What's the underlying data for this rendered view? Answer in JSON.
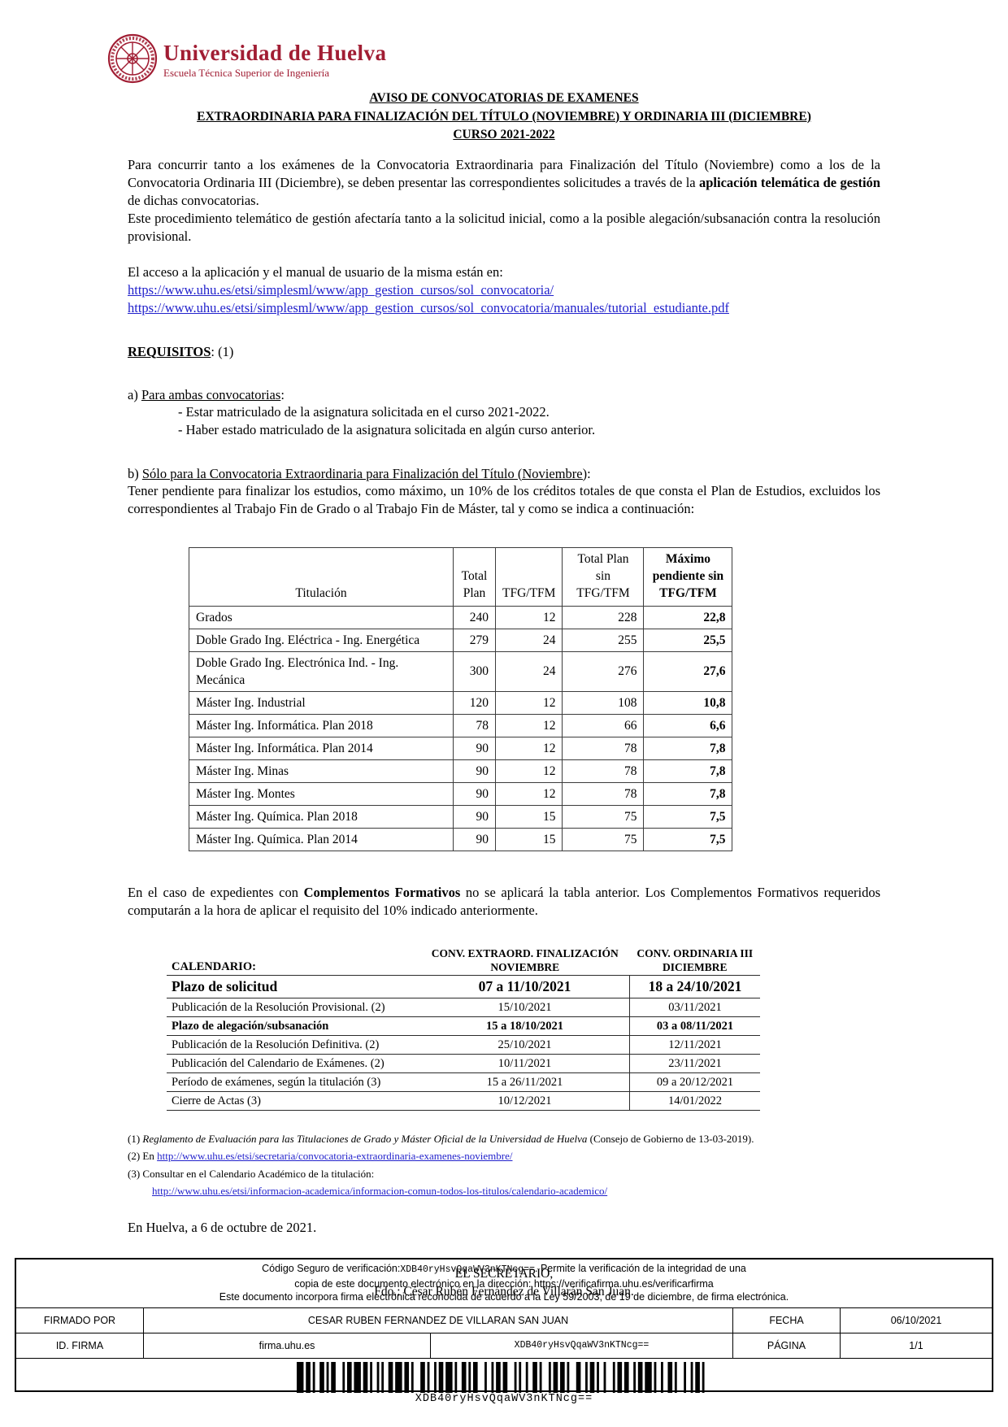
{
  "colors": {
    "brand_red": "#A11D33",
    "link_blue": "#2222CC"
  },
  "logo": {
    "university": "Universidad de Huelva",
    "school": "Escuela Técnica Superior de Ingeniería"
  },
  "title": {
    "line1": "AVISO DE CONVOCATORIAS DE EXAMENES",
    "line2": "EXTRAORDINARIA PARA FINALIZACIÓN DEL TÍTULO (NOVIEMBRE) Y ORDINARIA III (DICIEMBRE)",
    "line3": "CURSO 2021-2022"
  },
  "intro": {
    "p1_a": "Para concurrir tanto a los exámenes de la Convocatoria Extraordinaria para Finalización del Título (Noviembre) como a los de la Convocatoria Ordinaria III (Diciembre), se deben presentar las correspondientes solicitudes a través de la ",
    "p1_bold": "aplicación telemática de gestión",
    "p1_b": " de dichas convocatorias.",
    "p2": "Este procedimiento telemático de gestión afectaría tanto a la solicitud inicial, como a la posible alegación/subsanación contra la resolución provisional.",
    "access_line": "El acceso a la aplicación y el manual de usuario de la misma están en:",
    "link1": "https://www.uhu.es/etsi/simplesml/www/app_gestion_cursos/sol_convocatoria/",
    "link2": "https://www.uhu.es/etsi/simplesml/www/app_gestion_cursos/sol_convocatoria/manuales/tutorial_estudiante.pdf"
  },
  "requisitos": {
    "heading": "REQUISITOS",
    "heading_suffix": ": (1)",
    "a_label": "a) ",
    "a_underlined": "Para ambas convocatorias",
    "a_colon": ":",
    "a_item1": "- Estar matriculado de la asignatura solicitada en el curso 2021-2022.",
    "a_item2": "- Haber estado matriculado de la asignatura solicitada en algún curso anterior.",
    "b_label": "b) ",
    "b_underlined": "Sólo para la Convocatoria Extraordinaria para Finalización del Título (Noviembre)",
    "b_colon": ":",
    "b_paragraph": "Tener pendiente para finalizar los estudios, como máximo, un 10% de los créditos totales de que consta el Plan de Estudios, excluidos los correspondientes al Trabajo Fin de Grado o al Trabajo Fin de Máster, tal y como se indica a continuación:"
  },
  "credits_table": {
    "headers": {
      "titulacion": "Titulación",
      "total_plan": "Total Plan",
      "tfg_tfm": "TFG/TFM",
      "total_sin": "Total Plan sin TFG/TFM",
      "max_pendiente": "Máximo pendiente sin TFG/TFM"
    },
    "rows": [
      {
        "titulacion": "Grados",
        "total_plan": "240",
        "tfg_tfm": "12",
        "total_sin": "228",
        "max_pendiente": "22,8"
      },
      {
        "titulacion": "Doble Grado Ing. Eléctrica - Ing. Energética",
        "total_plan": "279",
        "tfg_tfm": "24",
        "total_sin": "255",
        "max_pendiente": "25,5"
      },
      {
        "titulacion": "Doble Grado Ing. Electrónica Ind. - Ing. Mecánica",
        "total_plan": "300",
        "tfg_tfm": "24",
        "total_sin": "276",
        "max_pendiente": "27,6"
      },
      {
        "titulacion": "Máster Ing. Industrial",
        "total_plan": "120",
        "tfg_tfm": "12",
        "total_sin": "108",
        "max_pendiente": "10,8"
      },
      {
        "titulacion": "Máster Ing. Informática. Plan 2018",
        "total_plan": "78",
        "tfg_tfm": "12",
        "total_sin": "66",
        "max_pendiente": "6,6"
      },
      {
        "titulacion": "Máster Ing. Informática. Plan 2014",
        "total_plan": "90",
        "tfg_tfm": "12",
        "total_sin": "78",
        "max_pendiente": "7,8"
      },
      {
        "titulacion": "Máster Ing. Minas",
        "total_plan": "90",
        "tfg_tfm": "12",
        "total_sin": "78",
        "max_pendiente": "7,8"
      },
      {
        "titulacion": "Máster Ing. Montes",
        "total_plan": "90",
        "tfg_tfm": "12",
        "total_sin": "78",
        "max_pendiente": "7,8"
      },
      {
        "titulacion": "Máster Ing. Química. Plan 2018",
        "total_plan": "90",
        "tfg_tfm": "15",
        "total_sin": "75",
        "max_pendiente": "7,5"
      },
      {
        "titulacion": "Máster Ing. Química. Plan 2014",
        "total_plan": "90",
        "tfg_tfm": "15",
        "total_sin": "75",
        "max_pendiente": "7,5"
      }
    ]
  },
  "complementos": {
    "a": "En el caso de expedientes con ",
    "bold": "Complementos Formativos",
    "b": " no se aplicará la tabla anterior. Los Complementos Formativos requeridos computarán a la hora de aplicar el requisito del 10% indicado anteriormente."
  },
  "calendar": {
    "title": "CALENDARIO:",
    "col_nov_line1": "CONV. EXTRAORD. FINALIZACIÓN",
    "col_nov_line2": "NOVIEMBRE",
    "col_dic_line1": "CONV. ORDINARIA III",
    "col_dic_line2": "DICIEMBRE",
    "rows": [
      {
        "label": "Plazo de solicitud",
        "nov": "07 a 11/10/2021",
        "dic": "18 a 24/10/2021"
      },
      {
        "label": "Publicación de la Resolución Provisional. (2)",
        "nov": "15/10/2021",
        "dic": "03/11/2021"
      },
      {
        "label": "Plazo de alegación/subsanación",
        "nov": "15 a 18/10/2021",
        "dic": "03 a 08/11/2021"
      },
      {
        "label": "Publicación de la Resolución Definitiva. (2)",
        "nov": "25/10/2021",
        "dic": "12/11/2021"
      },
      {
        "label": "Publicación del Calendario de Exámenes. (2)",
        "nov": "10/11/2021",
        "dic": "23/11/2021"
      },
      {
        "label": "Período de exámenes, según la titulación (3)",
        "nov": "15 a 26/11/2021",
        "dic": "09 a 20/12/2021"
      },
      {
        "label": "Cierre de Actas (3)",
        "nov": "10/12/2021",
        "dic": "14/01/2022"
      }
    ]
  },
  "footnotes": {
    "f1_label": "(1) ",
    "f1_italic": "Reglamento de Evaluación para las Titulaciones de Grado y Máster Oficial de la Universidad de Huelva",
    "f1_rest": " (Consejo de Gobierno de 13-03-2019).",
    "f2_label": "(2) En ",
    "f2_link": "http://www.uhu.es/etsi/secretaria/convocatoria-extraordinaria-examenes-noviembre/",
    "f3_label": "(3) Consultar en el Calendario Académico de la titulación:",
    "f3_link": "http://www.uhu.es/etsi/informacion-academica/informacion-comun-todos-los-titulos/calendario-academico/"
  },
  "closing": {
    "place_date": "En Huelva, a 6 de octubre de 2021.",
    "secretary": "EL SECRETARIO,",
    "signed": "Fdo.: César Rubén Fernández de Villarán San Juan."
  },
  "verification": {
    "line1_a": "Código Seguro de verificación:",
    "code": "XDB40ryHsvQqaWV3nKTNcg==",
    "line1_b": ". Permite la verificación de la integridad de una",
    "line2": "copia de este documento electrónico en la dirección: https://verificafirma.uhu.es/verificarfirma",
    "line3": "Este documento incorpora firma electrónica reconocida de acuerdo a la Ley 59/2003, de 19 de diciembre, de firma electrónica.",
    "firmado_por_label": "FIRMADO POR",
    "firmado_por_value": "CESAR RUBEN FERNANDEZ DE VILLARAN SAN JUAN",
    "fecha_label": "FECHA",
    "fecha_value": "06/10/2021",
    "id_firma_label": "ID. FIRMA",
    "id_firma_value": "firma.uhu.es",
    "id_firma_code": "XDB40ryHsvQqaWV3nKTNcg==",
    "pagina_label": "PÁGINA",
    "pagina_value": "1/1",
    "barcode_text": "XDB40ryHsvQqaWV3nKTNcg=="
  }
}
